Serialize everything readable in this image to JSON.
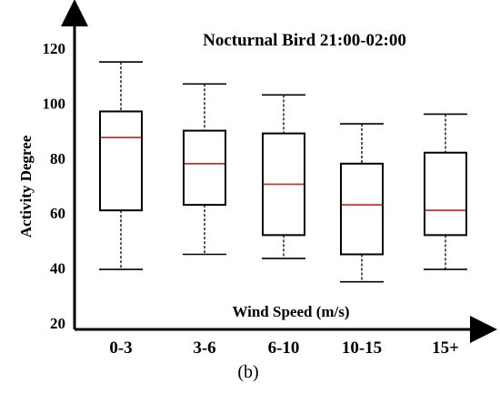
{
  "chart_data": {
    "type": "boxplot",
    "title": "Nocturnal Bird 21:00-02:00",
    "xlabel": "Wind Speed (m/s)",
    "ylabel": "Activity Degree",
    "panel_label": "(b)",
    "ylim": [
      20,
      130
    ],
    "yticks": [
      20,
      40,
      60,
      80,
      100,
      120
    ],
    "categories": [
      "0-3",
      "3-6",
      "6-10",
      "10-15",
      "15+"
    ],
    "boxes": [
      {
        "category": "0-3",
        "min": 39.5,
        "q1": 61.0,
        "median": 87.5,
        "q3": 97.0,
        "max": 115.0
      },
      {
        "category": "3-6",
        "min": 45.0,
        "q1": 63.0,
        "median": 78.0,
        "q3": 90.0,
        "max": 107.0
      },
      {
        "category": "6-10",
        "min": 43.5,
        "q1": 52.0,
        "median": 70.5,
        "q3": 89.0,
        "max": 103.0
      },
      {
        "category": "10-15",
        "min": 35.0,
        "q1": 45.0,
        "median": 63.0,
        "q3": 78.0,
        "max": 92.5
      },
      {
        "category": "15+",
        "min": 39.5,
        "q1": 52.0,
        "median": 61.0,
        "q3": 82.0,
        "max": 96.0
      }
    ],
    "grid": false,
    "legend": "none",
    "colors": {
      "box": "#000000",
      "median": "#c0392b",
      "whisker": "#000000"
    }
  }
}
